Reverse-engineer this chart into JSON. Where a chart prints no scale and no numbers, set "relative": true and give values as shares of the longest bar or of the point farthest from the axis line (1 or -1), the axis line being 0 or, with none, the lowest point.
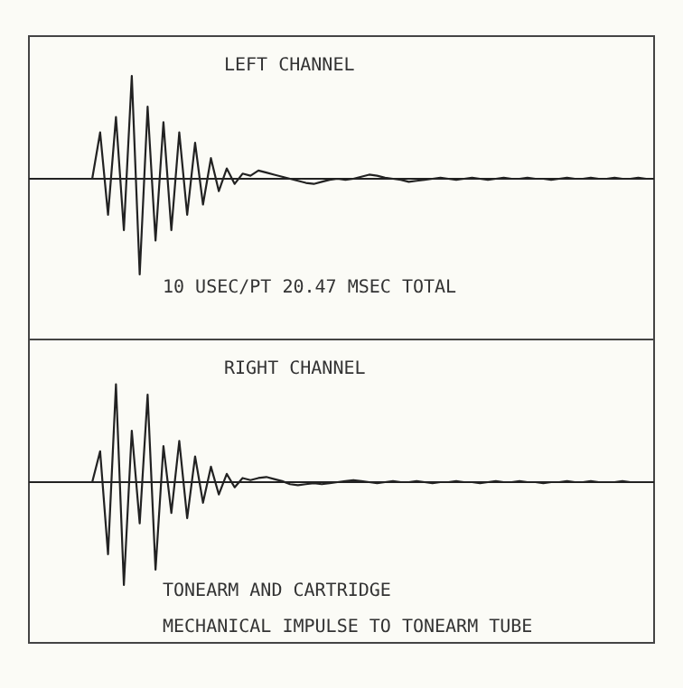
{
  "chart_data": [
    {
      "type": "line",
      "relative": true,
      "title": "LEFT CHANNEL",
      "annotations": [
        "10 USEC/PT  20.47 MSEC TOTAL"
      ],
      "categories": [
        null,
        null,
        null,
        null,
        null,
        null,
        null,
        null,
        null,
        null,
        null,
        null,
        null,
        null,
        null,
        null,
        null,
        null,
        null,
        null,
        null,
        null,
        null,
        null,
        null,
        null,
        null,
        null,
        null,
        null,
        null,
        null,
        null,
        null,
        null,
        null,
        null,
        null,
        null,
        null,
        null,
        null,
        null,
        null,
        null,
        null,
        null,
        null,
        null,
        null,
        null,
        null,
        null,
        null,
        null,
        null,
        null,
        null,
        null,
        null,
        null,
        null,
        null,
        null,
        null,
        null,
        null,
        null,
        null,
        null,
        null,
        null,
        null,
        null,
        null,
        null,
        null,
        null,
        null,
        null
      ],
      "series": [
        {
          "color": "#222222",
          "values": [
            0,
            0,
            0,
            0,
            0,
            0,
            0,
            0,
            0,
            0.45,
            -0.35,
            0.6,
            -0.5,
            1,
            -0.93,
            0.7,
            -0.6,
            0.55,
            -0.5,
            0.45,
            -0.35,
            0.35,
            -0.25,
            0.2,
            -0.12,
            0.1,
            -0.05,
            0.05,
            0.03,
            0.08,
            0.06,
            0.04,
            0.02,
            0,
            -0.02,
            -0.04,
            -0.05,
            -0.03,
            -0.01,
            0,
            -0.01,
            0,
            0.02,
            0.04,
            0.03,
            0.01,
            0,
            -0.01,
            -0.03,
            -0.02,
            -0.01,
            0,
            0.01,
            0,
            -0.01,
            0,
            0.01,
            0,
            -0.01,
            0,
            0.01,
            0,
            0,
            0.01,
            0,
            0,
            -0.01,
            0,
            0.01,
            0,
            0,
            0.01,
            0,
            0,
            0.01,
            0,
            0,
            0.01,
            0,
            0
          ]
        }
      ]
    },
    {
      "type": "line",
      "relative": true,
      "title": "RIGHT CHANNEL",
      "annotations": [
        "TONEARM AND CARTRIDGE",
        "MECHANICAL IMPULSE TO TONEARM TUBE"
      ],
      "categories": [
        null,
        null,
        null,
        null,
        null,
        null,
        null,
        null,
        null,
        null,
        null,
        null,
        null,
        null,
        null,
        null,
        null,
        null,
        null,
        null,
        null,
        null,
        null,
        null,
        null,
        null,
        null,
        null,
        null,
        null,
        null,
        null,
        null,
        null,
        null,
        null,
        null,
        null,
        null,
        null,
        null,
        null,
        null,
        null,
        null,
        null,
        null,
        null,
        null,
        null,
        null,
        null,
        null,
        null,
        null,
        null,
        null,
        null,
        null,
        null,
        null,
        null,
        null,
        null,
        null,
        null,
        null,
        null,
        null,
        null,
        null,
        null,
        null,
        null,
        null,
        null,
        null,
        null,
        null,
        null
      ],
      "series": [
        {
          "color": "#222222",
          "values": [
            0,
            0,
            0,
            0,
            0,
            0,
            0,
            0,
            0,
            0.3,
            -0.7,
            0.95,
            -1,
            0.5,
            -0.4,
            0.85,
            -0.85,
            0.35,
            -0.3,
            0.4,
            -0.35,
            0.25,
            -0.2,
            0.15,
            -0.12,
            0.08,
            -0.05,
            0.04,
            0.02,
            0.04,
            0.05,
            0.03,
            0.01,
            -0.02,
            -0.03,
            -0.02,
            -0.01,
            -0.02,
            -0.01,
            0,
            0.01,
            0.02,
            0.01,
            0,
            -0.01,
            0,
            0.01,
            0,
            0,
            0.01,
            0,
            -0.01,
            0,
            0,
            0.01,
            0,
            0,
            -0.01,
            0,
            0.01,
            0,
            0,
            0.01,
            0,
            0,
            -0.01,
            0,
            0,
            0.01,
            0,
            0,
            0.01,
            0,
            0,
            0,
            0.01,
            0,
            0,
            0,
            0
          ]
        }
      ]
    }
  ]
}
